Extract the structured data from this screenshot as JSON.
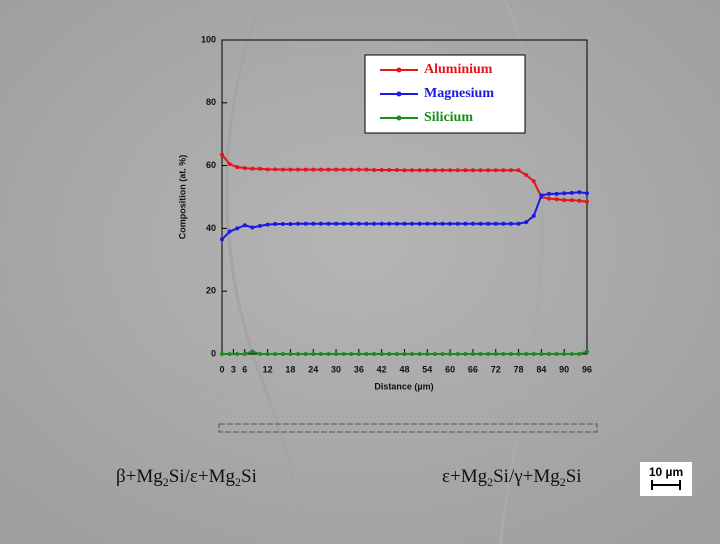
{
  "chart_data": {
    "type": "line",
    "xlabel": "Distance (µm)",
    "ylabel": "Composition (at. %)",
    "x": [
      0,
      2,
      4,
      6,
      8,
      10,
      12,
      14,
      16,
      18,
      20,
      22,
      24,
      26,
      28,
      30,
      32,
      34,
      36,
      38,
      40,
      42,
      44,
      46,
      48,
      50,
      52,
      54,
      56,
      58,
      60,
      62,
      64,
      66,
      68,
      70,
      72,
      74,
      76,
      78,
      80,
      82,
      84,
      86,
      88,
      90,
      92,
      94,
      96
    ],
    "series": [
      {
        "name": "Aluminium",
        "color": "#e8141c",
        "values": [
          63.5,
          60.5,
          59.5,
          59.2,
          59,
          59,
          58.8,
          58.8,
          58.7,
          58.7,
          58.7,
          58.7,
          58.7,
          58.7,
          58.7,
          58.7,
          58.7,
          58.7,
          58.7,
          58.7,
          58.6,
          58.6,
          58.6,
          58.6,
          58.5,
          58.5,
          58.5,
          58.5,
          58.5,
          58.5,
          58.5,
          58.5,
          58.5,
          58.5,
          58.5,
          58.5,
          58.5,
          58.5,
          58.5,
          58.5,
          57,
          55,
          50,
          49.5,
          49.3,
          49,
          49,
          48.8,
          48.5
        ]
      },
      {
        "name": "Magnesium",
        "color": "#1a1ae6",
        "values": [
          36.5,
          39,
          40,
          41,
          40.3,
          40.8,
          41.2,
          41.4,
          41.4,
          41.4,
          41.5,
          41.5,
          41.5,
          41.5,
          41.5,
          41.5,
          41.5,
          41.5,
          41.5,
          41.5,
          41.5,
          41.5,
          41.5,
          41.5,
          41.5,
          41.5,
          41.5,
          41.5,
          41.5,
          41.5,
          41.5,
          41.5,
          41.5,
          41.5,
          41.5,
          41.5,
          41.5,
          41.5,
          41.5,
          41.5,
          42,
          44,
          50.5,
          51,
          51,
          51.2,
          51.3,
          51.5,
          51.2
        ]
      },
      {
        "name": "Silicium",
        "color": "#1f8a1f",
        "values": [
          0,
          0,
          0,
          0,
          0.8,
          0,
          0,
          0,
          0,
          0,
          0,
          0,
          0,
          0,
          0,
          0,
          0,
          0,
          0,
          0,
          0,
          0,
          0,
          0,
          0,
          0,
          0,
          0,
          0,
          0,
          0,
          0,
          0,
          0,
          0,
          0,
          0,
          0,
          0,
          0,
          0,
          0,
          0,
          0,
          0,
          0,
          0,
          0,
          0.8
        ]
      }
    ],
    "xlim": [
      0,
      96
    ],
    "xticks": [
      0,
      3,
      6,
      12,
      18,
      24,
      30,
      36,
      42,
      48,
      54,
      60,
      66,
      72,
      78,
      84,
      90,
      96
    ],
    "ylim": [
      0,
      100
    ],
    "yticks": [
      0,
      20,
      40,
      60,
      80,
      100
    ],
    "annotations": [
      {
        "parts": [
          "β+Mg",
          "2",
          "Si/ε+Mg",
          "2",
          "Si"
        ]
      },
      {
        "parts": [
          "ε+Mg",
          "2",
          "Si/γ+Mg",
          "2",
          "Si"
        ]
      }
    ],
    "scale_bar": "10 µm"
  }
}
